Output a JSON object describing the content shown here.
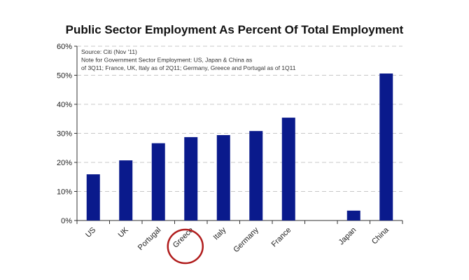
{
  "chart_data": {
    "type": "bar",
    "title": "Public Sector Employment As Percent Of Total Employment",
    "annotations": [
      "Source: Citi (Nov '11)",
      "Note for Government Sector Employment: US, Japan & China as",
      "of 3Q11; France, UK, Italy as of 2Q11; Germany, Greece and Portugal as of 1Q11"
    ],
    "categories": [
      "US",
      "UK",
      "Portugal",
      "Greece",
      "Italy",
      "Germany",
      "France",
      "",
      "Japan",
      "China"
    ],
    "values": [
      15.9,
      20.7,
      26.6,
      28.7,
      29.4,
      30.8,
      35.4,
      null,
      3.4,
      50.6
    ],
    "ylim": [
      0,
      60
    ],
    "yticks": [
      "0%",
      "10%",
      "20%",
      "30%",
      "40%",
      "50%",
      "60%"
    ],
    "grid": true,
    "bar_color": "#0a1a8c",
    "highlighted_category": "Greece",
    "highlight_color": "#b01c1c"
  }
}
